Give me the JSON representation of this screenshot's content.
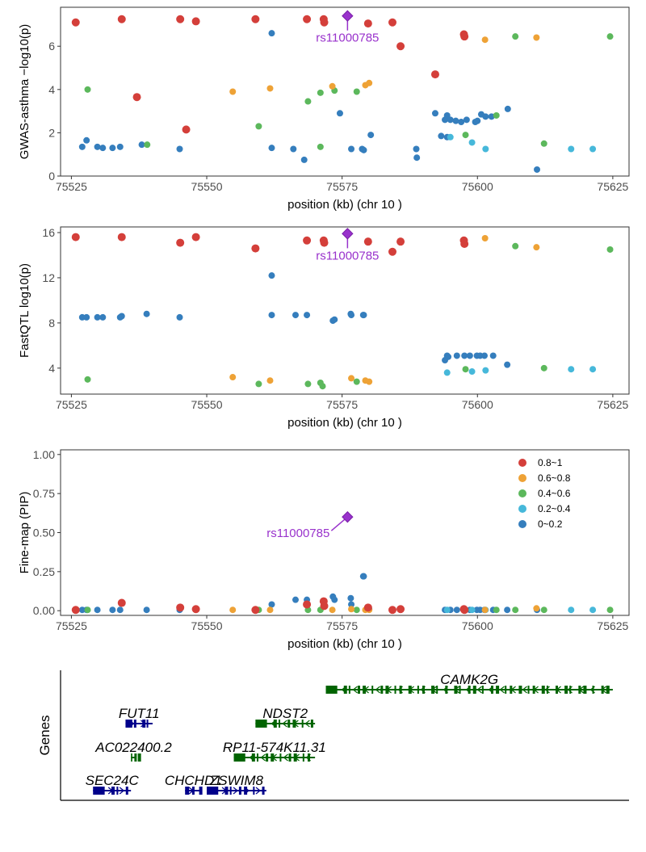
{
  "colors": {
    "lead": "#9932CC",
    "ld": [
      "#D43F3A",
      "#EEA236",
      "#5CB85C",
      "#46B8DA",
      "#357EBD"
    ],
    "gene_forward": "#00008B",
    "gene_reverse": "#006400"
  },
  "lead_snp": {
    "name": "rs11000785",
    "position": 75576
  },
  "legend": {
    "entries": [
      "0.8~1",
      "0.6~0.8",
      "0.4~0.6",
      "0.2~0.4",
      "0~0.2"
    ],
    "placement": "top-right"
  },
  "genes_track": {
    "ylabel": "Genes",
    "genes": [
      {
        "name": "CAMK2G",
        "start": 75572,
        "end": 75625,
        "strand": "-",
        "row": 0
      },
      {
        "name": "FUT11",
        "start": 75535,
        "end": 75540,
        "strand": "+",
        "row": 1
      },
      {
        "name": "NDST2",
        "start": 75559,
        "end": 75570,
        "strand": "-",
        "row": 1
      },
      {
        "name": "AC022400.2",
        "start": 75536,
        "end": 75537,
        "strand": "-",
        "row": 2
      },
      {
        "name": "RP11-574K11.31",
        "start": 75555,
        "end": 75570,
        "strand": "-",
        "row": 2
      },
      {
        "name": "SEC24C",
        "start": 75529,
        "end": 75536,
        "strand": "+",
        "row": 3
      },
      {
        "name": "CHCHD1",
        "start": 75546,
        "end": 75549,
        "strand": "+",
        "row": 3
      },
      {
        "name": "ZSWIM8",
        "start": 75550,
        "end": 75561,
        "strand": "+",
        "row": 3
      }
    ]
  },
  "chart_data": [
    {
      "type": "scatter",
      "ylabel": "GWAS-asthma −log10(p)",
      "xlabel": "position (kb) (chr 10 )",
      "xlim": [
        75523,
        75628
      ],
      "ylim": [
        0,
        7.8
      ],
      "xticks": [
        75525,
        75550,
        75575,
        75600,
        75625
      ],
      "yticks": [
        0,
        2,
        4,
        6
      ],
      "lead_value": 7.4,
      "points": [
        [
          75525.8,
          7.1,
          0
        ],
        [
          75534.3,
          7.25,
          0
        ],
        [
          75545.1,
          7.25,
          0
        ],
        [
          75548,
          7.15,
          0
        ],
        [
          75559,
          7.25,
          0
        ],
        [
          75568.5,
          7.25,
          0
        ],
        [
          75571.6,
          7.25,
          0
        ],
        [
          75571.7,
          7.1,
          0
        ],
        [
          75579.8,
          7.05,
          0
        ],
        [
          75584.3,
          7.1,
          0
        ],
        [
          75585.8,
          6,
          0
        ],
        [
          75597.5,
          6.55,
          0
        ],
        [
          75597.6,
          6.45,
          0
        ],
        [
          75592.2,
          4.7,
          0
        ],
        [
          75537.1,
          3.65,
          0
        ],
        [
          75546.2,
          2.15,
          0
        ],
        [
          75601.4,
          6.3,
          1
        ],
        [
          75610.9,
          6.4,
          1
        ],
        [
          75554.8,
          3.9,
          1
        ],
        [
          75561.7,
          4.05,
          1
        ],
        [
          75573.2,
          4.15,
          1
        ],
        [
          75579.3,
          4.2,
          1
        ],
        [
          75580,
          4.3,
          1
        ],
        [
          75607,
          6.45,
          2
        ],
        [
          75624.5,
          6.45,
          2
        ],
        [
          75528,
          4,
          2
        ],
        [
          75568.7,
          3.45,
          2
        ],
        [
          75571,
          3.85,
          2
        ],
        [
          75577.7,
          3.9,
          2
        ],
        [
          75573.6,
          3.95,
          2
        ],
        [
          75559.6,
          2.3,
          2
        ],
        [
          75539,
          1.45,
          2
        ],
        [
          75571,
          1.35,
          2
        ],
        [
          75597.8,
          1.9,
          2
        ],
        [
          75603.5,
          2.8,
          2
        ],
        [
          75612.3,
          1.5,
          2
        ],
        [
          75595,
          1.8,
          3
        ],
        [
          75599,
          1.55,
          3
        ],
        [
          75601.5,
          1.25,
          3
        ],
        [
          75617.3,
          1.25,
          3
        ],
        [
          75621.3,
          1.25,
          3
        ],
        [
          75562,
          6.6,
          4
        ],
        [
          75527,
          1.35,
          4
        ],
        [
          75527.8,
          1.65,
          4
        ],
        [
          75529.8,
          1.35,
          4
        ],
        [
          75530.8,
          1.3,
          4
        ],
        [
          75532.6,
          1.3,
          4
        ],
        [
          75534,
          1.35,
          4
        ],
        [
          75538,
          1.45,
          4
        ],
        [
          75545,
          1.25,
          4
        ],
        [
          75562,
          1.3,
          4
        ],
        [
          75566,
          1.25,
          4
        ],
        [
          75568,
          0.75,
          4
        ],
        [
          75574.6,
          2.9,
          4
        ],
        [
          75576.7,
          1.25,
          4
        ],
        [
          75578.7,
          1.25,
          4
        ],
        [
          75579,
          1.2,
          4
        ],
        [
          75580.3,
          1.9,
          4
        ],
        [
          75588.7,
          1.25,
          4
        ],
        [
          75588.8,
          0.85,
          4
        ],
        [
          75592.2,
          2.9,
          4
        ],
        [
          75593.3,
          1.85,
          4
        ],
        [
          75594,
          2.6,
          4
        ],
        [
          75594.4,
          2.8,
          4
        ],
        [
          75595,
          2.6,
          4
        ],
        [
          75596,
          2.55,
          4
        ],
        [
          75597,
          2.5,
          4
        ],
        [
          75598,
          2.6,
          4
        ],
        [
          75599.6,
          2.5,
          4
        ],
        [
          75600,
          2.55,
          4
        ],
        [
          75600.7,
          2.85,
          4
        ],
        [
          75601.5,
          2.75,
          4
        ],
        [
          75602.6,
          2.75,
          4
        ],
        [
          75605.6,
          3.1,
          4
        ],
        [
          75611,
          0.3,
          4
        ],
        [
          75594.4,
          1.8,
          4
        ]
      ]
    },
    {
      "type": "scatter",
      "ylabel": "FastQTL log10(p)",
      "xlabel": "position (kb) (chr 10 )",
      "xlim": [
        75523,
        75628
      ],
      "ylim": [
        1.7,
        16.5
      ],
      "xticks": [
        75525,
        75550,
        75575,
        75600,
        75625
      ],
      "yticks": [
        4,
        8,
        12,
        16
      ],
      "lead_value": 15.9,
      "points": [
        [
          75525.8,
          15.6,
          0
        ],
        [
          75534.3,
          15.6,
          0
        ],
        [
          75545.1,
          15.1,
          0
        ],
        [
          75548,
          15.6,
          0
        ],
        [
          75559,
          14.6,
          0
        ],
        [
          75568.5,
          15.3,
          0
        ],
        [
          75571.6,
          15.3,
          0
        ],
        [
          75571.7,
          15.1,
          0
        ],
        [
          75579.8,
          15.2,
          0
        ],
        [
          75584.3,
          14.3,
          0
        ],
        [
          75585.8,
          15.2,
          0
        ],
        [
          75597.5,
          15.3,
          0
        ],
        [
          75597.6,
          15.0,
          0
        ],
        [
          75601.4,
          15.5,
          1
        ],
        [
          75610.9,
          14.7,
          1
        ],
        [
          75554.8,
          3.2,
          1
        ],
        [
          75561.7,
          2.9,
          1
        ],
        [
          75576.7,
          3.1,
          1
        ],
        [
          75579.3,
          2.9,
          1
        ],
        [
          75580,
          2.8,
          1
        ],
        [
          75607,
          14.8,
          2
        ],
        [
          75624.5,
          14.5,
          2
        ],
        [
          75528,
          3,
          2
        ],
        [
          75559.6,
          2.6,
          2
        ],
        [
          75568.7,
          2.6,
          2
        ],
        [
          75571,
          2.7,
          2
        ],
        [
          75571.4,
          2.4,
          2
        ],
        [
          75577.7,
          2.8,
          2
        ],
        [
          75597.8,
          3.9,
          2
        ],
        [
          75612.3,
          4.0,
          2
        ],
        [
          75594.4,
          3.6,
          3
        ],
        [
          75599,
          3.7,
          3
        ],
        [
          75601.5,
          3.8,
          3
        ],
        [
          75617.3,
          3.9,
          3
        ],
        [
          75621.3,
          3.9,
          3
        ],
        [
          75527,
          8.5,
          4
        ],
        [
          75527.8,
          8.5,
          4
        ],
        [
          75529.8,
          8.5,
          4
        ],
        [
          75530.8,
          8.5,
          4
        ],
        [
          75534,
          8.5,
          4
        ],
        [
          75534.3,
          8.6,
          4
        ],
        [
          75538.9,
          8.8,
          4
        ],
        [
          75545,
          8.5,
          4
        ],
        [
          75562,
          12.2,
          4
        ],
        [
          75562,
          8.7,
          4
        ],
        [
          75566.4,
          8.7,
          4
        ],
        [
          75568.5,
          8.7,
          4
        ],
        [
          75573.3,
          8.2,
          4
        ],
        [
          75573.6,
          8.3,
          4
        ],
        [
          75576.6,
          8.8,
          4
        ],
        [
          75576.7,
          8.7,
          4
        ],
        [
          75578.9,
          8.7,
          4
        ],
        [
          75579,
          8.7,
          4
        ],
        [
          75594,
          4.7,
          4
        ],
        [
          75594.4,
          5.1,
          4
        ],
        [
          75594.6,
          5.0,
          4
        ],
        [
          75596.2,
          5.1,
          4
        ],
        [
          75597.6,
          5.1,
          4
        ],
        [
          75598.6,
          5.1,
          4
        ],
        [
          75599.9,
          5.1,
          4
        ],
        [
          75600.5,
          5.1,
          4
        ],
        [
          75601.3,
          5.1,
          4
        ],
        [
          75602.9,
          5.1,
          4
        ],
        [
          75605.5,
          4.3,
          4
        ]
      ]
    },
    {
      "type": "scatter",
      "ylabel": "Fine-map (PIP)",
      "xlabel": "position (kb) (chr 10 )",
      "xlim": [
        75523,
        75628
      ],
      "ylim": [
        -0.03,
        1.03
      ],
      "xticks": [
        75525,
        75550,
        75575,
        75600,
        75625
      ],
      "yticks": [
        0.0,
        0.25,
        0.5,
        0.75,
        1.0
      ],
      "ytick_labels": [
        "0.00",
        "0.25",
        "0.50",
        "0.75",
        "1.00"
      ],
      "lead_value": 0.6,
      "points": [
        [
          75525.8,
          0.005,
          0
        ],
        [
          75534.3,
          0.05,
          0
        ],
        [
          75545.1,
          0.02,
          0
        ],
        [
          75548,
          0.01,
          0
        ],
        [
          75559,
          0.005,
          0
        ],
        [
          75568.5,
          0.04,
          0
        ],
        [
          75571.6,
          0.06,
          0
        ],
        [
          75571.7,
          0.03,
          0
        ],
        [
          75579.8,
          0.02,
          0
        ],
        [
          75584.3,
          0.005,
          0
        ],
        [
          75585.8,
          0.01,
          0
        ],
        [
          75597.5,
          0.01,
          0
        ],
        [
          75597.6,
          0.005,
          0
        ],
        [
          75601.4,
          0.005,
          1
        ],
        [
          75610.9,
          0.015,
          1
        ],
        [
          75554.8,
          0.005,
          1
        ],
        [
          75561.7,
          0.005,
          1
        ],
        [
          75573.2,
          0.005,
          1
        ],
        [
          75576.7,
          0.01,
          1
        ],
        [
          75579.3,
          0.005,
          1
        ],
        [
          75580,
          0.005,
          1
        ],
        [
          75607,
          0.005,
          2
        ],
        [
          75624.5,
          0.005,
          2
        ],
        [
          75528,
          0.005,
          2
        ],
        [
          75559.6,
          0.005,
          2
        ],
        [
          75568.7,
          0.005,
          2
        ],
        [
          75571,
          0.005,
          2
        ],
        [
          75577.7,
          0.005,
          2
        ],
        [
          75597.8,
          0.005,
          2
        ],
        [
          75603.5,
          0.005,
          2
        ],
        [
          75612.3,
          0.005,
          2
        ],
        [
          75594.4,
          0.005,
          3
        ],
        [
          75599,
          0.005,
          3
        ],
        [
          75601.5,
          0.005,
          3
        ],
        [
          75617.3,
          0.005,
          3
        ],
        [
          75621.3,
          0.005,
          3
        ],
        [
          75527,
          0.005,
          4
        ],
        [
          75527.8,
          0.005,
          4
        ],
        [
          75529.8,
          0.005,
          4
        ],
        [
          75532.6,
          0.005,
          4
        ],
        [
          75534,
          0.005,
          4
        ],
        [
          75538.9,
          0.005,
          4
        ],
        [
          75545,
          0.005,
          4
        ],
        [
          75562,
          0.04,
          4
        ],
        [
          75566.4,
          0.07,
          4
        ],
        [
          75568.5,
          0.07,
          4
        ],
        [
          75573.3,
          0.09,
          4
        ],
        [
          75573.6,
          0.07,
          4
        ],
        [
          75576.6,
          0.08,
          4
        ],
        [
          75576.7,
          0.04,
          4
        ],
        [
          75578.9,
          0.22,
          4
        ],
        [
          75579,
          0.22,
          4
        ],
        [
          75580,
          0.01,
          4
        ],
        [
          75594,
          0.005,
          4
        ],
        [
          75595,
          0.005,
          4
        ],
        [
          75596.2,
          0.005,
          4
        ],
        [
          75597.6,
          0.005,
          4
        ],
        [
          75598.6,
          0.005,
          4
        ],
        [
          75599.9,
          0.005,
          4
        ],
        [
          75600.5,
          0.005,
          4
        ],
        [
          75601.3,
          0.005,
          4
        ],
        [
          75602.9,
          0.005,
          4
        ],
        [
          75605.5,
          0.005,
          4
        ],
        [
          75611,
          0.005,
          4
        ]
      ]
    }
  ]
}
